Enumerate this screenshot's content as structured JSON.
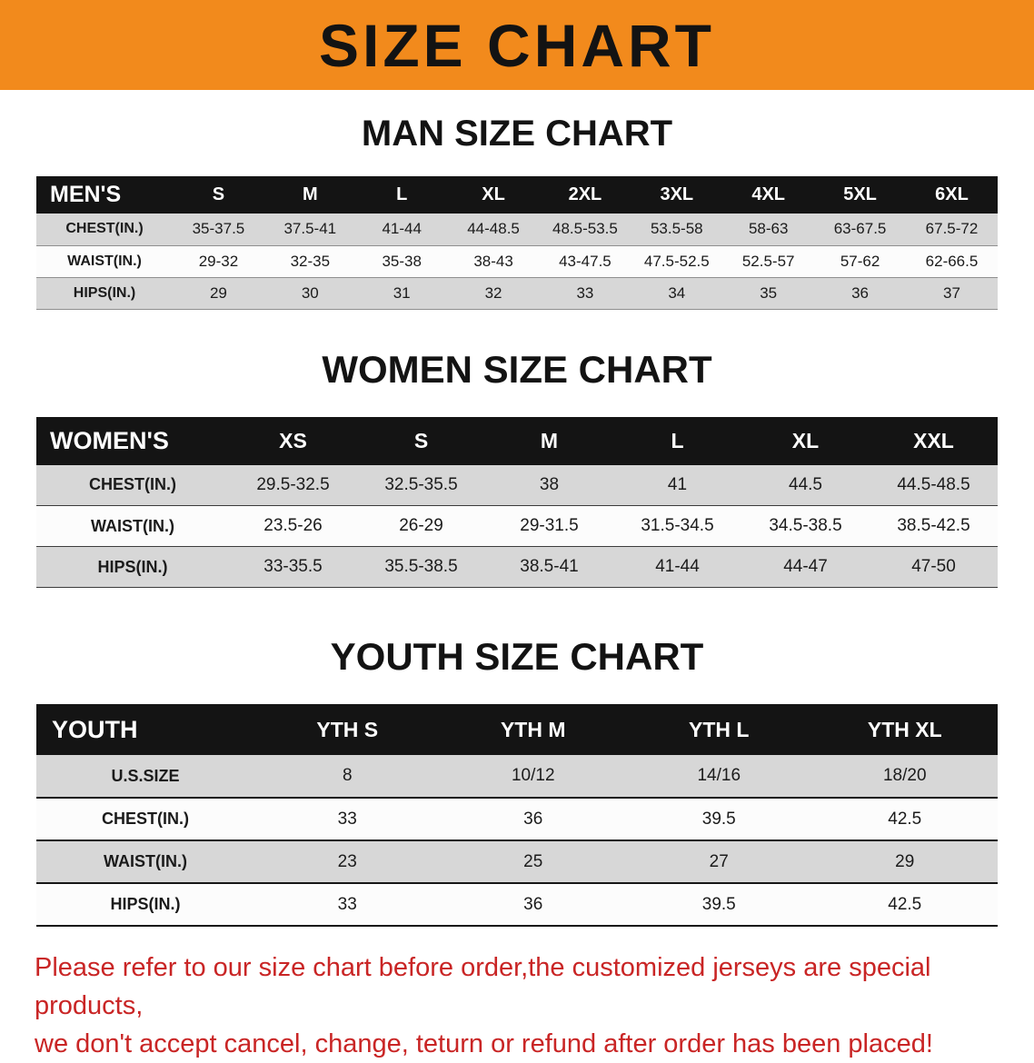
{
  "banner": {
    "title": "SIZE CHART",
    "background_color": "#f28a1c"
  },
  "men_chart": {
    "heading": "MAN SIZE CHART",
    "table": {
      "corner_label": "MEN'S",
      "sizes": [
        "S",
        "M",
        "L",
        "XL",
        "2XL",
        "3XL",
        "4XL",
        "5XL",
        "6XL"
      ],
      "rows": [
        {
          "label": "CHEST(IN.)",
          "values": [
            "35-37.5",
            "37.5-41",
            "41-44",
            "44-48.5",
            "48.5-53.5",
            "53.5-58",
            "58-63",
            "63-67.5",
            "67.5-72"
          ]
        },
        {
          "label": "WAIST(IN.)",
          "values": [
            "29-32",
            "32-35",
            "35-38",
            "38-43",
            "43-47.5",
            "47.5-52.5",
            "52.5-57",
            "57-62",
            "62-66.5"
          ]
        },
        {
          "label": "HIPS(IN.)",
          "values": [
            "29",
            "30",
            "31",
            "32",
            "33",
            "34",
            "35",
            "36",
            "37"
          ]
        }
      ]
    }
  },
  "women_chart": {
    "heading": "WOMEN SIZE CHART",
    "table": {
      "corner_label": "WOMEN'S",
      "sizes": [
        "XS",
        "S",
        "M",
        "L",
        "XL",
        "XXL"
      ],
      "rows": [
        {
          "label": "CHEST(IN.)",
          "values": [
            "29.5-32.5",
            "32.5-35.5",
            "38",
            "41",
            "44.5",
            "44.5-48.5"
          ]
        },
        {
          "label": "WAIST(IN.)",
          "values": [
            "23.5-26",
            "26-29",
            "29-31.5",
            "31.5-34.5",
            "34.5-38.5",
            "38.5-42.5"
          ]
        },
        {
          "label": "HIPS(IN.)",
          "values": [
            "33-35.5",
            "35.5-38.5",
            "38.5-41",
            "41-44",
            "44-47",
            "47-50"
          ]
        }
      ]
    }
  },
  "youth_chart": {
    "heading": "YOUTH SIZE CHART",
    "table": {
      "corner_label": "YOUTH",
      "sizes": [
        "YTH S",
        "YTH M",
        "YTH L",
        "YTH XL"
      ],
      "rows": [
        {
          "label": "U.S.SIZE",
          "values": [
            "8",
            "10/12",
            "14/16",
            "18/20"
          ]
        },
        {
          "label": "CHEST(IN.)",
          "values": [
            "33",
            "36",
            "39.5",
            "42.5"
          ]
        },
        {
          "label": "WAIST(IN.)",
          "values": [
            "23",
            "25",
            "27",
            "29"
          ]
        },
        {
          "label": "HIPS(IN.)",
          "values": [
            "33",
            "36",
            "39.5",
            "42.5"
          ]
        }
      ]
    }
  },
  "disclaimer": {
    "line1": "Please refer to our size chart before order,the customized jerseys are special products,",
    "line2": "we don't accept cancel, change, teturn or refund after order has been placed!",
    "text_color": "#c92525"
  },
  "colors": {
    "row_gray": "#d7d7d7",
    "header_black": "#141414",
    "banner_orange": "#f28a1c"
  }
}
